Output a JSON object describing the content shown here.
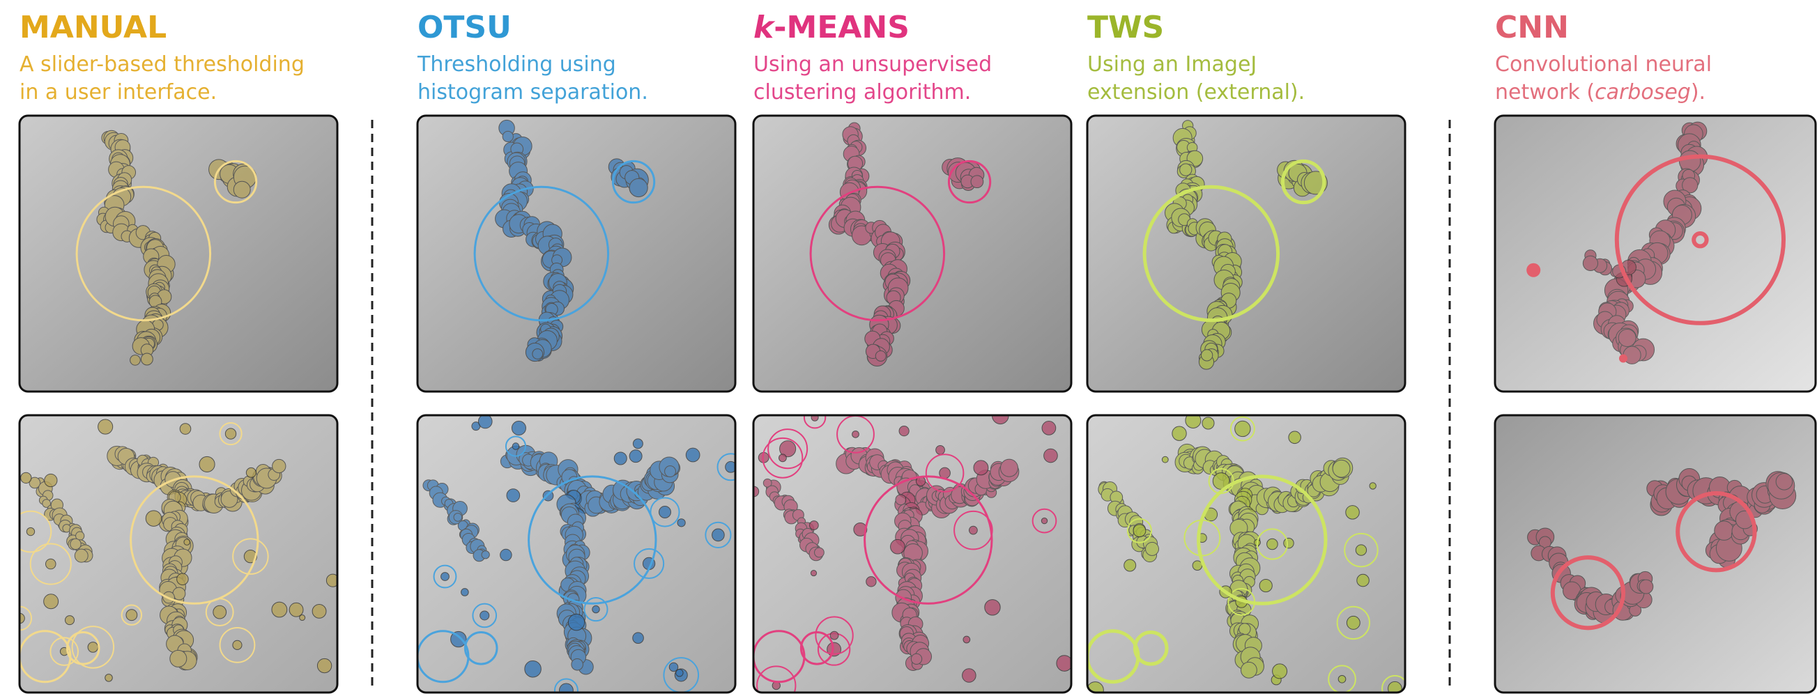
{
  "columns": [
    {
      "title": [
        {
          "text": "MANUAL",
          "italic": false
        }
      ],
      "description": [
        [
          {
            "text": "A slider-based thresholding",
            "italic": false
          }
        ],
        [
          {
            "text": "in a user interface.",
            "italic": false
          }
        ]
      ],
      "color": "#e3a81b",
      "overlay": "#b5a25a",
      "ring": "#f2d98c"
    },
    {
      "title": [
        {
          "text": "OTSU",
          "italic": false
        }
      ],
      "description": [
        [
          {
            "text": "Thresholding using",
            "italic": false
          }
        ],
        [
          {
            "text": "histogram separation.",
            "italic": false
          }
        ]
      ],
      "color": "#2e98d4",
      "overlay": "#3b78b4",
      "ring": "#4aa3dd"
    },
    {
      "title": [
        {
          "text": "k",
          "italic": true
        },
        {
          "text": "-MEANS",
          "italic": false
        }
      ],
      "description": [
        [
          {
            "text": "Using an unsupervised",
            "italic": false
          }
        ],
        [
          {
            "text": "clustering algorithm.",
            "italic": false
          }
        ]
      ],
      "color": "#e0337e",
      "overlay": "#b0506f",
      "ring": "#e2407f"
    },
    {
      "title": [
        {
          "text": "TWS",
          "italic": false
        }
      ],
      "description": [
        [
          {
            "text": "Using an ImageJ",
            "italic": false
          }
        ],
        [
          {
            "text": "extension (external).",
            "italic": false
          }
        ]
      ],
      "color": "#9bb52a",
      "overlay": "#a9bb42",
      "ring": "#cde462"
    },
    {
      "title": [
        {
          "text": "CNN",
          "italic": false
        }
      ],
      "description": [
        [
          {
            "text": "Convolutional neural",
            "italic": false
          }
        ],
        [
          {
            "text": "network (",
            "italic": false
          },
          {
            "text": "carboseg",
            "italic": true
          },
          {
            "text": ").",
            "italic": false
          }
        ]
      ],
      "color": "#e06070",
      "overlay": "#a14f60",
      "ring": "#e35f6c"
    }
  ]
}
